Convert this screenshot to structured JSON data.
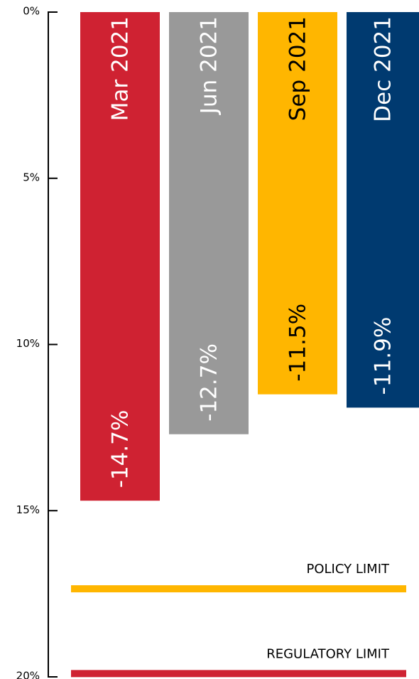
{
  "chart_data": {
    "type": "bar",
    "categories": [
      "Mar 2021",
      "Jun 2021",
      "Sep 2021",
      "Dec 2021"
    ],
    "values": [
      -14.7,
      -12.7,
      -11.5,
      -11.9
    ],
    "value_labels": [
      "-14.7%",
      "-12.7%",
      "-11.5%",
      "-11.9%"
    ],
    "colors": [
      "#cf2232",
      "#999999",
      "#ffb600",
      "#003a70"
    ],
    "label_colors": [
      "#ffffff",
      "#ffffff",
      "#000000",
      "#ffffff"
    ],
    "ylim": [
      0,
      -20
    ],
    "yticks": [
      {
        "value": 0,
        "label": "0%"
      },
      {
        "value": -5,
        "label": "5%"
      },
      {
        "value": -10,
        "label": "10%"
      },
      {
        "value": -15,
        "label": "15%"
      },
      {
        "value": -20,
        "label": "20%"
      }
    ],
    "reference_lines": [
      {
        "label": "POLICY LIMIT",
        "value": -17.35,
        "color": "#ffb600"
      },
      {
        "label": "REGULATORY LIMIT",
        "value": -19.9,
        "color": "#cf2232"
      }
    ]
  }
}
